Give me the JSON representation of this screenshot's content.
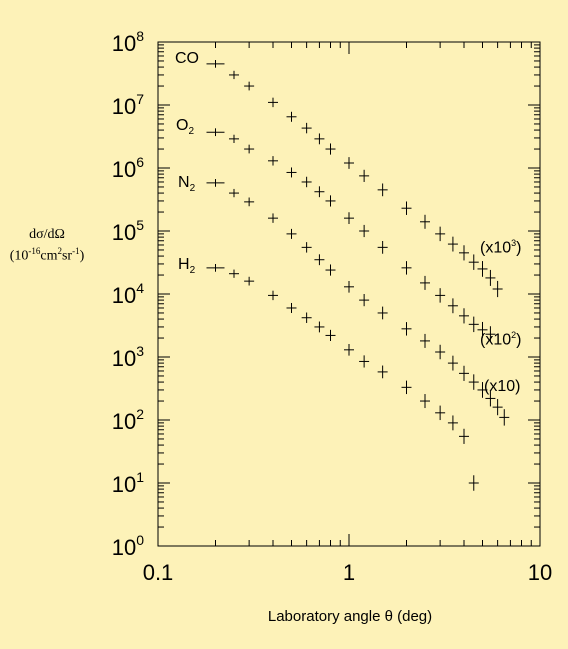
{
  "chart_data": {
    "type": "scatter",
    "xlabel": "Laboratory angle  θ (deg)",
    "ylabel_line1": "dσ/dΩ",
    "ylabel_line2_base": "(10",
    "ylabel_line2_exp": "-16",
    "ylabel_line2_rest": "cm",
    "ylabel_line2_exp2": "2",
    "ylabel_line2_rest2": "sr",
    "ylabel_line2_exp3": "-1",
    "ylabel_line2_end": ")",
    "x_scale": "log",
    "y_scale": "log",
    "xlim": [
      0.1,
      10
    ],
    "ylim": [
      1,
      100000000
    ],
    "x_ticks": [
      "0.1",
      "1",
      "10"
    ],
    "y_tick_base": "10",
    "y_tick_exps": [
      "0",
      "1",
      "2",
      "3",
      "4",
      "5",
      "6",
      "7",
      "8"
    ],
    "series": [
      {
        "name": "CO",
        "name_sub": "",
        "scale_label": "(x10",
        "scale_exp": "3",
        "scale_end": ")",
        "x": [
          0.2,
          0.25,
          0.3,
          0.4,
          0.5,
          0.6,
          0.7,
          0.8,
          1.0,
          1.2,
          1.5,
          2.0,
          2.5,
          3.0,
          3.5,
          4.0,
          4.5,
          5.0,
          5.5,
          6.0
        ],
        "y": [
          45000000,
          30000000,
          20000000,
          11000000,
          6500000,
          4300000,
          2900000,
          2000000,
          1200000,
          750000,
          450000,
          230000,
          140000,
          90000,
          62000,
          45000,
          32000,
          25000,
          18000,
          12000
        ]
      },
      {
        "name": "O",
        "name_sub": "2",
        "scale_label": "(x10",
        "scale_exp": "2",
        "scale_end": ")",
        "x": [
          0.2,
          0.25,
          0.3,
          0.4,
          0.5,
          0.6,
          0.7,
          0.8,
          1.0,
          1.2,
          1.5,
          2.0,
          2.5,
          3.0,
          3.5,
          4.0,
          4.5,
          5.0,
          5.5
        ],
        "y": [
          3700000,
          2900000,
          2000000,
          1300000,
          850000,
          600000,
          420000,
          300000,
          160000,
          100000,
          55000,
          26000,
          15000,
          9500,
          6500,
          4500,
          3300,
          2700,
          2300
        ]
      },
      {
        "name": "N",
        "name_sub": "2",
        "scale_label": "(x10)",
        "scale_exp": "",
        "scale_end": "",
        "x": [
          0.2,
          0.25,
          0.3,
          0.4,
          0.5,
          0.6,
          0.7,
          0.8,
          1.0,
          1.2,
          1.5,
          2.0,
          2.5,
          3.0,
          3.5,
          4.0,
          4.5,
          5.0,
          5.5,
          6.0,
          6.5
        ],
        "y": [
          580000,
          400000,
          290000,
          160000,
          90000,
          55000,
          35000,
          24000,
          13000,
          8000,
          5000,
          2800,
          1800,
          1200,
          800,
          550,
          400,
          300,
          220,
          160,
          110
        ]
      },
      {
        "name": "H",
        "name_sub": "2",
        "scale_label": "",
        "scale_exp": "",
        "scale_end": "",
        "x": [
          0.2,
          0.25,
          0.3,
          0.4,
          0.5,
          0.6,
          0.7,
          0.8,
          1.0,
          1.2,
          1.5,
          2.0,
          2.5,
          3.0,
          3.5,
          4.0,
          4.5
        ],
        "y": [
          26000,
          21000,
          16000,
          9500,
          6000,
          4200,
          3000,
          2200,
          1300,
          850,
          580,
          330,
          200,
          130,
          90,
          55,
          10
        ]
      }
    ],
    "grid": false,
    "legend": "none"
  }
}
